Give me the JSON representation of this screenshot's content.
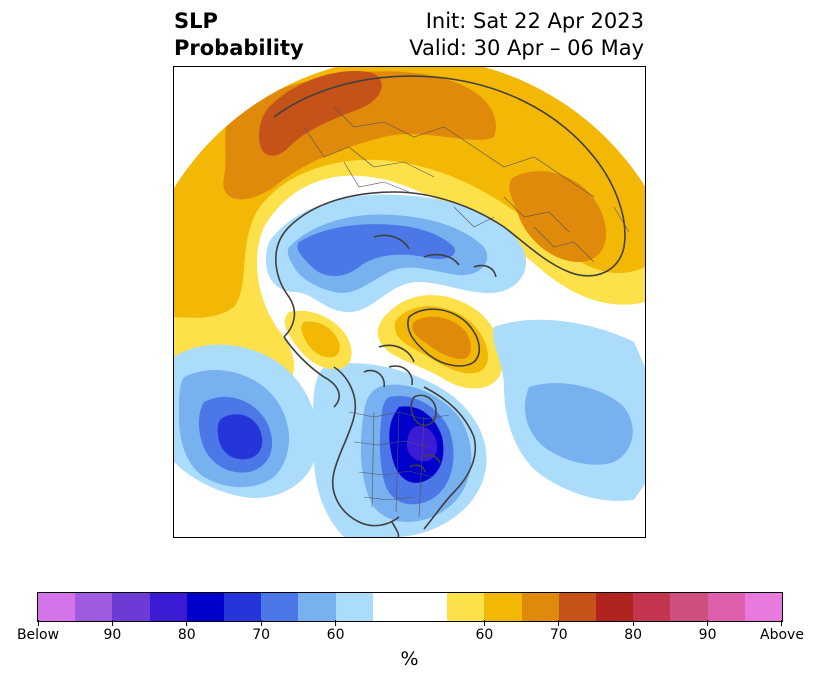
{
  "title": {
    "left_line1": "SLP",
    "left_line2": "Probability",
    "right_line1": "Init: Sat 22 Apr 2023",
    "right_line2": "Valid: 30 Apr – 06 May"
  },
  "colorbar": {
    "colors": [
      "#d574ea",
      "#a05be0",
      "#6d3ad6",
      "#3b1bd4",
      "#0000cd",
      "#2436d9",
      "#4c77e6",
      "#77b1f0",
      "#abdcfb",
      "#ffffff",
      "#ffffff",
      "#fde14a",
      "#f3b705",
      "#e08a0c",
      "#c55219",
      "#b0231f",
      "#c43550",
      "#cf4f7f",
      "#de5fae",
      "#e87ade"
    ],
    "ticks": [
      {
        "label": "Below",
        "index": 0
      },
      {
        "label": "90",
        "index": 2
      },
      {
        "label": "80",
        "index": 4
      },
      {
        "label": "70",
        "index": 6
      },
      {
        "label": "60",
        "index": 8
      },
      {
        "label": "60",
        "index": 12
      },
      {
        "label": "70",
        "index": 14
      },
      {
        "label": "80",
        "index": 16
      },
      {
        "label": "90",
        "index": 18
      },
      {
        "label": "Above",
        "index": 20
      }
    ],
    "unit": "%"
  }
}
